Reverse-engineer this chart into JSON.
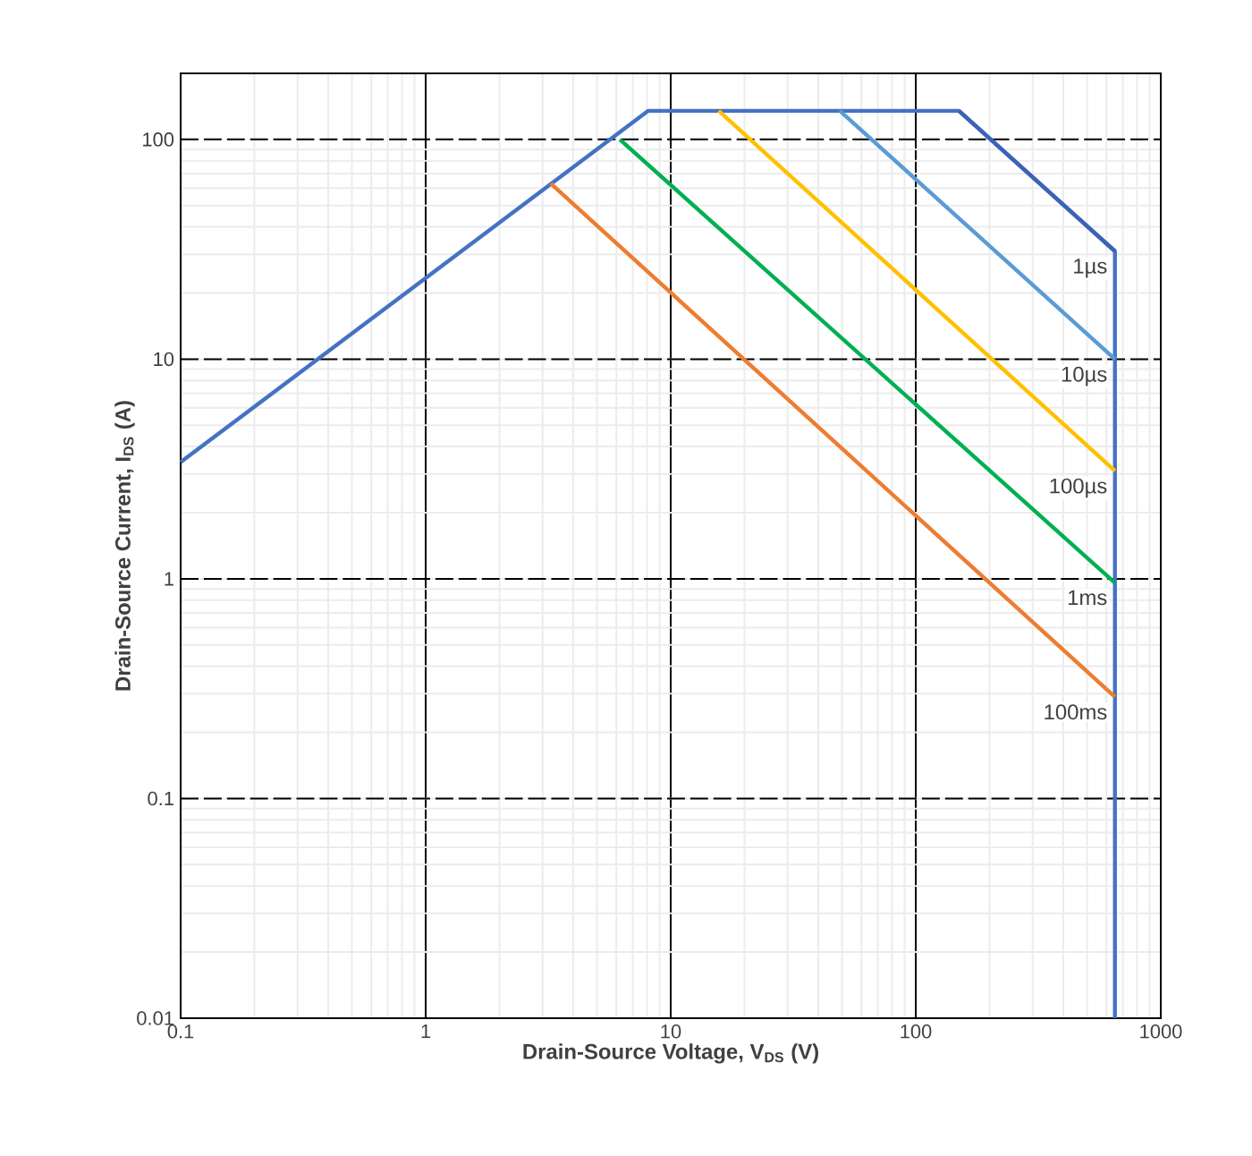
{
  "chart_data": {
    "type": "line",
    "xlabel": "Drain-Source Voltage, V$_{DS}$ (V)",
    "ylabel": "Drain-Source Current, I$_{DS}$ (A)",
    "log": "xy",
    "xlim": [
      0.1,
      1000
    ],
    "ylim": [
      0.01,
      200
    ],
    "xticks": [
      0.1,
      1,
      10,
      100,
      1000
    ],
    "yticks": [
      0.01,
      0.1,
      1,
      10,
      100
    ],
    "grid": true,
    "legend": false,
    "marker": "none",
    "line_style": "solid",
    "series": [
      {
        "color": "#4472c4",
        "x": [
          0.1,
          8.1,
          150,
          650,
          650
        ],
        "values": [
          3.4,
          135,
          135,
          31,
          0.01
        ]
      },
      {
        "name": "1µs",
        "color": "#3c62b8",
        "x": [
          150,
          650
        ],
        "values": [
          135,
          31
        ]
      },
      {
        "name": "10µs",
        "color": "#5b9bd5",
        "x": [
          49,
          650
        ],
        "values": [
          135,
          10
        ]
      },
      {
        "name": "100µs",
        "color": "#ffc000",
        "x": [
          15.7,
          650
        ],
        "values": [
          135,
          3.1
        ]
      },
      {
        "name": "1ms",
        "color": "#00b050",
        "x": [
          6.2,
          650
        ],
        "values": [
          100,
          0.96
        ]
      },
      {
        "name": "100ms",
        "color": "#ed7d31",
        "x": [
          3.24,
          650
        ],
        "values": [
          63,
          0.29
        ]
      }
    ]
  }
}
